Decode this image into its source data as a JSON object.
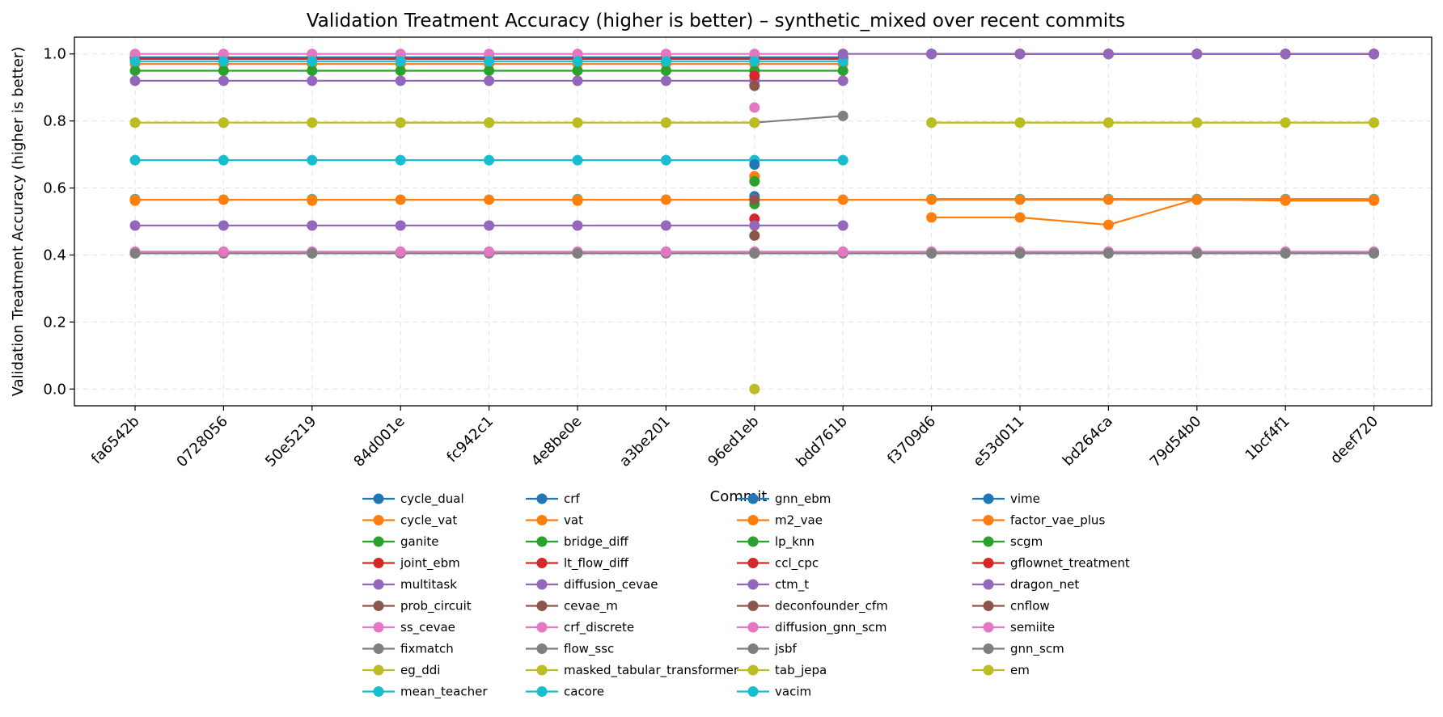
{
  "chart_data": {
    "type": "line",
    "title": "Validation Treatment Accuracy (higher is better) – synthetic_mixed over recent commits",
    "xlabel": "Commit",
    "ylabel": "Validation Treatment Accuracy (higher is better)",
    "ylim": [
      -0.05,
      1.05
    ],
    "yticks": [
      "0.0",
      "0.2",
      "0.4",
      "0.6",
      "0.8",
      "1.0"
    ],
    "grid": true,
    "legend_position": "below",
    "categories": [
      "fa6542b",
      "0728056",
      "50e5219",
      "84d001e",
      "fc942c1",
      "4e8be0e",
      "a3be201",
      "96ed1eb",
      "bdd761b",
      "f3709d6",
      "e53d011",
      "bd264ca",
      "79d54b0",
      "1bcf4f1",
      "deef720"
    ],
    "series": [
      {
        "name": "cycle_dual",
        "color": "#1f77b4",
        "values": [
          0.99,
          0.99,
          0.99,
          0.99,
          0.99,
          0.99,
          0.99,
          0.99,
          0.99,
          null,
          null,
          null,
          null,
          null,
          null
        ]
      },
      {
        "name": "cycle_vat",
        "color": "#ff7f0e",
        "values": [
          0.97,
          0.97,
          0.97,
          0.97,
          0.97,
          0.97,
          0.97,
          0.97,
          0.97,
          null,
          null,
          null,
          null,
          null,
          null
        ]
      },
      {
        "name": "ganite",
        "color": "#2ca02c",
        "values": [
          0.95,
          0.95,
          0.95,
          0.95,
          0.95,
          0.95,
          0.95,
          0.95,
          0.95,
          null,
          null,
          null,
          null,
          null,
          null
        ]
      },
      {
        "name": "joint_ebm",
        "color": "#d62728",
        "values": [
          0.985,
          0.985,
          0.985,
          0.985,
          0.985,
          0.985,
          0.985,
          0.985,
          0.985,
          null,
          null,
          null,
          null,
          null,
          null
        ]
      },
      {
        "name": "multitask",
        "color": "#9467bd",
        "values": [
          0.92,
          0.92,
          0.92,
          0.92,
          0.92,
          0.92,
          0.92,
          0.92,
          0.92,
          null,
          null,
          null,
          null,
          null,
          null
        ]
      },
      {
        "name": "prob_circuit",
        "color": "#8c564b",
        "values": [
          null,
          null,
          null,
          null,
          null,
          null,
          null,
          0.905,
          null,
          null,
          null,
          null,
          null,
          null,
          null
        ]
      },
      {
        "name": "ss_cevae",
        "color": "#e377c2",
        "values": [
          1.0,
          1.0,
          1.0,
          1.0,
          1.0,
          1.0,
          1.0,
          1.0,
          1.0,
          null,
          null,
          null,
          null,
          null,
          null
        ]
      },
      {
        "name": "fixmatch",
        "color": "#7f7f7f",
        "values": [
          null,
          0.795,
          null,
          0.795,
          0.795,
          null,
          0.795,
          0.795,
          0.815,
          null,
          null,
          null,
          null,
          null,
          null
        ]
      },
      {
        "name": "eg_ddi",
        "color": "#bcbd22",
        "values": [
          0.795,
          null,
          0.795,
          null,
          null,
          0.795,
          null,
          0.795,
          null,
          0.795,
          0.795,
          0.795,
          0.795,
          0.795,
          0.795
        ]
      },
      {
        "name": "mean_teacher",
        "color": "#17becf",
        "values": [
          0.683,
          0.683,
          0.683,
          0.683,
          0.683,
          0.683,
          0.683,
          0.683,
          0.683,
          null,
          null,
          null,
          null,
          null,
          null
        ]
      },
      {
        "name": "crf",
        "color": "#1f77b4",
        "values": [
          null,
          null,
          null,
          null,
          null,
          null,
          null,
          0.67,
          null,
          null,
          null,
          null,
          null,
          null,
          null
        ]
      },
      {
        "name": "vat",
        "color": "#ff7f0e",
        "values": [
          0.562,
          null,
          0.562,
          null,
          null,
          0.562,
          null,
          0.635,
          null,
          0.512,
          0.512,
          0.49,
          0.567,
          0.562,
          0.562
        ]
      },
      {
        "name": "bridge_diff",
        "color": "#2ca02c",
        "values": [
          null,
          null,
          null,
          null,
          null,
          null,
          null,
          0.62,
          null,
          null,
          null,
          null,
          null,
          null,
          null
        ]
      },
      {
        "name": "lt_flow_diff",
        "color": "#d62728",
        "values": [
          null,
          null,
          null,
          null,
          null,
          null,
          null,
          0.508,
          null,
          null,
          null,
          null,
          null,
          null,
          null
        ]
      },
      {
        "name": "diffusion_cevae",
        "color": "#9467bd",
        "values": [
          0.488,
          0.488,
          0.488,
          0.488,
          0.488,
          0.488,
          0.488,
          0.488,
          0.488,
          null,
          null,
          null,
          null,
          null,
          null
        ]
      },
      {
        "name": "cevae_m",
        "color": "#8c564b",
        "values": [
          null,
          null,
          null,
          null,
          null,
          null,
          null,
          0.458,
          null,
          null,
          null,
          null,
          null,
          null,
          null
        ]
      },
      {
        "name": "crf_discrete",
        "color": "#e377c2",
        "values": [
          null,
          null,
          null,
          null,
          null,
          null,
          null,
          0.84,
          null,
          null,
          null,
          null,
          null,
          null,
          null
        ]
      },
      {
        "name": "flow_ssc",
        "color": "#7f7f7f",
        "values": [
          0.405,
          0.405,
          0.405,
          0.405,
          0.405,
          0.405,
          0.405,
          0.405,
          0.405,
          0.405,
          0.405,
          0.405,
          0.405,
          0.405,
          0.405
        ]
      },
      {
        "name": "masked_tabular_transformer",
        "color": "#bcbd22",
        "values": [
          null,
          null,
          null,
          null,
          null,
          null,
          null,
          0.0,
          null,
          null,
          null,
          null,
          null,
          null,
          null
        ]
      },
      {
        "name": "cacore",
        "color": "#17becf",
        "values": [
          0.567,
          null,
          0.567,
          null,
          null,
          0.567,
          null,
          0.567,
          null,
          0.567,
          0.567,
          0.567,
          0.567,
          0.567,
          0.567
        ]
      },
      {
        "name": "gnn_ebm",
        "color": "#1f77b4",
        "values": [
          null,
          null,
          null,
          null,
          null,
          null,
          null,
          0.575,
          null,
          null,
          null,
          null,
          null,
          null,
          null
        ]
      },
      {
        "name": "m2_vae",
        "color": "#ff7f0e",
        "values": [
          0.565,
          0.565,
          0.565,
          0.565,
          0.565,
          0.565,
          0.565,
          0.565,
          0.565,
          0.565,
          0.565,
          0.565,
          0.565,
          0.565,
          0.565
        ]
      },
      {
        "name": "lp_knn",
        "color": "#2ca02c",
        "values": [
          null,
          null,
          null,
          null,
          null,
          null,
          null,
          0.552,
          null,
          null,
          null,
          null,
          null,
          null,
          null
        ]
      },
      {
        "name": "ccl_cpc",
        "color": "#d62728",
        "values": [
          null,
          null,
          null,
          null,
          null,
          null,
          null,
          0.935,
          null,
          null,
          null,
          null,
          null,
          null,
          null
        ]
      },
      {
        "name": "ctm_t",
        "color": "#9467bd",
        "values": [
          null,
          null,
          null,
          null,
          null,
          null,
          null,
          0.567,
          null,
          null,
          null,
          null,
          null,
          null,
          null
        ]
      },
      {
        "name": "deconfounder_cfm",
        "color": "#8c564b",
        "values": [
          null,
          null,
          null,
          null,
          null,
          null,
          null,
          0.565,
          null,
          null,
          null,
          null,
          null,
          null,
          null
        ]
      },
      {
        "name": "diffusion_gnn_scm",
        "color": "#e377c2",
        "values": [
          0.41,
          0.41,
          0.41,
          0.41,
          0.41,
          0.41,
          0.41,
          0.41,
          0.41,
          0.41,
          0.41,
          0.41,
          0.41,
          0.41,
          0.41
        ]
      },
      {
        "name": "jsbf",
        "color": "#7f7f7f",
        "values": [
          0.405,
          null,
          0.405,
          null,
          null,
          0.405,
          null,
          0.405,
          null,
          0.405,
          0.405,
          0.405,
          0.405,
          0.405,
          0.405
        ]
      },
      {
        "name": "tab_jepa",
        "color": "#bcbd22",
        "values": [
          0.795,
          0.795,
          0.795,
          0.795,
          0.795,
          0.795,
          0.795,
          0.795,
          null,
          0.795,
          0.795,
          0.795,
          0.795,
          0.795,
          0.795
        ]
      },
      {
        "name": "vacim",
        "color": "#17becf",
        "values": [
          0.978,
          0.978,
          0.978,
          0.978,
          0.978,
          0.978,
          0.978,
          0.978,
          0.978,
          null,
          null,
          null,
          null,
          null,
          null
        ]
      },
      {
        "name": "vime",
        "color": "#1f77b4",
        "values": [
          null,
          null,
          null,
          null,
          null,
          null,
          null,
          null,
          null,
          1.0,
          1.0,
          1.0,
          1.0,
          1.0,
          1.0
        ]
      },
      {
        "name": "factor_vae_plus",
        "color": "#ff7f0e",
        "values": [
          null,
          null,
          null,
          null,
          null,
          null,
          null,
          null,
          null,
          null,
          null,
          null,
          0.565,
          0.565,
          0.565
        ]
      },
      {
        "name": "scgm",
        "color": "#2ca02c",
        "values": [
          null,
          null,
          null,
          null,
          null,
          null,
          null,
          null,
          null,
          1.0,
          1.0,
          1.0,
          1.0,
          1.0,
          1.0
        ]
      },
      {
        "name": "gflownet_treatment",
        "color": "#d62728",
        "values": [
          null,
          null,
          null,
          null,
          null,
          null,
          null,
          null,
          null,
          1.0,
          1.0,
          1.0,
          1.0,
          1.0,
          1.0
        ]
      },
      {
        "name": "dragon_net",
        "color": "#9467bd",
        "values": [
          null,
          null,
          null,
          null,
          null,
          null,
          null,
          null,
          1.0,
          1.0,
          1.0,
          1.0,
          1.0,
          1.0,
          1.0
        ]
      },
      {
        "name": "cnflow",
        "color": "#8c564b",
        "values": [
          null,
          null,
          null,
          null,
          null,
          null,
          null,
          null,
          null,
          null,
          null,
          null,
          null,
          null,
          null
        ]
      },
      {
        "name": "semiite",
        "color": "#e377c2",
        "values": [
          null,
          null,
          null,
          null,
          null,
          null,
          null,
          null,
          null,
          null,
          null,
          null,
          null,
          null,
          null
        ]
      },
      {
        "name": "gnn_scm",
        "color": "#7f7f7f",
        "values": [
          null,
          null,
          null,
          null,
          null,
          null,
          null,
          null,
          null,
          null,
          null,
          null,
          null,
          null,
          null
        ]
      },
      {
        "name": "em",
        "color": "#bcbd22",
        "values": [
          null,
          null,
          null,
          null,
          null,
          null,
          null,
          null,
          null,
          null,
          null,
          null,
          null,
          null,
          null
        ]
      }
    ]
  }
}
